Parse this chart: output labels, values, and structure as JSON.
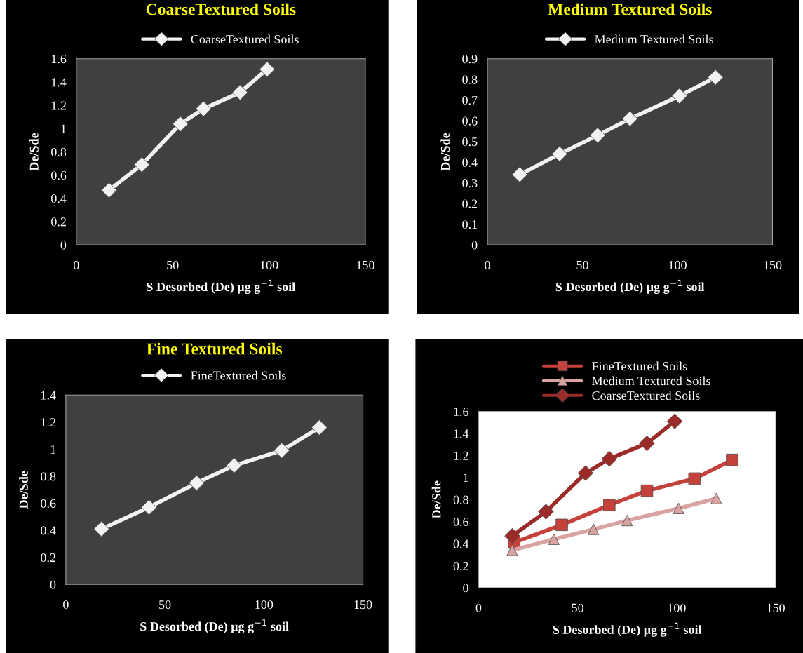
{
  "chart_data": [
    {
      "type": "line",
      "title": "CoarseTextured Soils",
      "xlabel": "S Desorbed (De) µg g$^{−1}$ soil",
      "ylabel": "De/Sde",
      "legend": "top",
      "marker": "diamond",
      "series": [
        {
          "name": "CoarseTextured Soils",
          "color": "#f2f2f2",
          "x": [
            17,
            34,
            54,
            66,
            85,
            99
          ],
          "values": [
            0.47,
            0.69,
            1.04,
            1.17,
            1.31,
            1.51
          ]
        }
      ],
      "xlim": [
        0,
        150
      ],
      "xticks": [
        0,
        50,
        100,
        150
      ],
      "ylim": [
        0,
        1.6
      ],
      "yticks": [
        0,
        0.2,
        0.4,
        0.6,
        0.8,
        1,
        1.2,
        1.4,
        1.6
      ]
    },
    {
      "type": "line",
      "title": "Medium Textured Soils",
      "xlabel": "S Desorbed (De) µg g$^{−1}$ soil",
      "ylabel": "De/Sde",
      "legend": "top",
      "marker": "diamond",
      "series": [
        {
          "name": "Medium Textured Soils",
          "color": "#f2f2f2",
          "x": [
            17,
            38,
            58,
            75,
            101,
            120
          ],
          "values": [
            0.34,
            0.44,
            0.53,
            0.61,
            0.72,
            0.81
          ]
        }
      ],
      "xlim": [
        0,
        150
      ],
      "xticks": [
        0,
        50,
        100,
        150
      ],
      "ylim": [
        0,
        0.9
      ],
      "yticks": [
        0,
        0.1,
        0.2,
        0.3,
        0.4,
        0.5,
        0.6,
        0.7,
        0.8,
        0.9
      ]
    },
    {
      "type": "line",
      "title": "Fine Textured Soils",
      "xlabel": "S Desorbed (De) µg g$^{−1}$ soil",
      "ylabel": "De/Sde",
      "legend": "top",
      "marker": "diamond",
      "series": [
        {
          "name": "FineTextured Soils",
          "color": "#f2f2f2",
          "x": [
            18,
            42,
            66,
            85,
            109,
            128
          ],
          "values": [
            0.41,
            0.57,
            0.75,
            0.88,
            0.99,
            1.16
          ]
        }
      ],
      "xlim": [
        0,
        150
      ],
      "xticks": [
        0,
        50,
        100,
        150
      ],
      "ylim": [
        0,
        1.4
      ],
      "yticks": [
        0,
        0.2,
        0.4,
        0.6,
        0.8,
        1,
        1.2,
        1.4
      ]
    },
    {
      "type": "line",
      "xlabel": "S Desorbed (De) µg g$^{−1}$ soil",
      "ylabel": "De/Sde",
      "legend": "top",
      "series": [
        {
          "name": "FineTextured Soils",
          "color": "#c4413c",
          "marker": "square",
          "x": [
            18,
            42,
            66,
            85,
            109,
            128
          ],
          "values": [
            0.41,
            0.57,
            0.75,
            0.88,
            0.99,
            1.16
          ]
        },
        {
          "name": "Medium Textured Soils",
          "color": "#d9a3a1",
          "marker": "triangle",
          "x": [
            17,
            38,
            58,
            75,
            101,
            120
          ],
          "values": [
            0.34,
            0.44,
            0.53,
            0.61,
            0.72,
            0.81
          ]
        },
        {
          "name": "CoarseTextured Soils",
          "color": "#9a2b28",
          "marker": "diamond",
          "x": [
            17,
            34,
            54,
            66,
            85,
            99
          ],
          "values": [
            0.47,
            0.69,
            1.04,
            1.17,
            1.31,
            1.51
          ]
        }
      ],
      "xlim": [
        0,
        150
      ],
      "xticks": [
        0,
        50,
        100,
        150
      ],
      "ylim": [
        0,
        1.6
      ],
      "yticks": [
        0,
        0.2,
        0.4,
        0.6,
        0.8,
        1,
        1.2,
        1.4,
        1.6
      ]
    }
  ]
}
